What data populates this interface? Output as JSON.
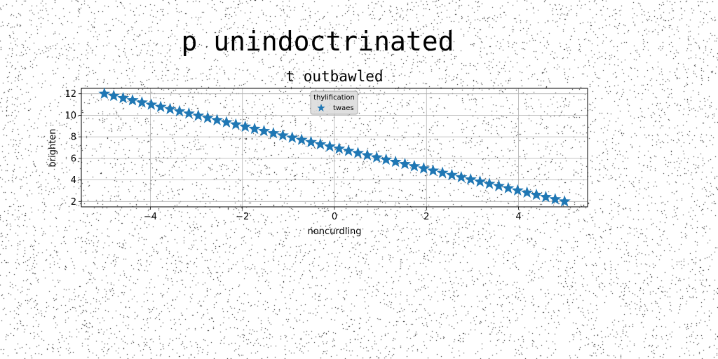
{
  "figure": {
    "suptitle": "p unindoctrinated"
  },
  "chart_data": {
    "type": "scatter",
    "title": "t outbawled",
    "xlabel": "noncurdling",
    "ylabel": "brighten",
    "xlim": [
      -5.5,
      5.5
    ],
    "ylim": [
      1.5,
      12.5
    ],
    "xticks": [
      -4,
      -2,
      0,
      2,
      4
    ],
    "xtick_labels": [
      "−4",
      "−2",
      "0",
      "2",
      "4"
    ],
    "yticks": [
      2,
      4,
      6,
      8,
      10,
      12
    ],
    "ytick_labels": [
      "2",
      "4",
      "6",
      "8",
      "10",
      "12"
    ],
    "grid": true,
    "legend": {
      "title": "thylification",
      "placement": "top-center"
    },
    "series": [
      {
        "name": "twaes",
        "marker": "star",
        "color": "#1f77b4",
        "x_range": [
          -5,
          5
        ],
        "n_points": 50,
        "x": [
          -5.0,
          -4.796,
          -4.592,
          -4.388,
          -4.184,
          -3.98,
          -3.776,
          -3.571,
          -3.367,
          -3.163,
          -2.959,
          -2.755,
          -2.551,
          -2.347,
          -2.143,
          -1.939,
          -1.735,
          -1.531,
          -1.327,
          -1.122,
          -0.918,
          -0.714,
          -0.51,
          -0.306,
          -0.102,
          0.102,
          0.306,
          0.51,
          0.714,
          0.918,
          1.122,
          1.327,
          1.531,
          1.735,
          1.939,
          2.143,
          2.347,
          2.551,
          2.755,
          2.959,
          3.163,
          3.367,
          3.571,
          3.776,
          3.98,
          4.184,
          4.388,
          4.592,
          4.796,
          5.0
        ],
        "y": [
          12.0,
          11.796,
          11.592,
          11.388,
          11.184,
          10.98,
          10.776,
          10.571,
          10.367,
          10.163,
          9.959,
          9.755,
          9.551,
          9.347,
          9.143,
          8.939,
          8.735,
          8.531,
          8.327,
          8.122,
          7.918,
          7.714,
          7.51,
          7.306,
          7.102,
          6.898,
          6.694,
          6.49,
          6.286,
          6.082,
          5.878,
          5.673,
          5.469,
          5.265,
          5.061,
          4.857,
          4.653,
          4.449,
          4.245,
          4.041,
          3.837,
          3.633,
          3.429,
          3.224,
          3.02,
          2.816,
          2.612,
          2.408,
          2.204,
          2.0
        ]
      }
    ]
  }
}
